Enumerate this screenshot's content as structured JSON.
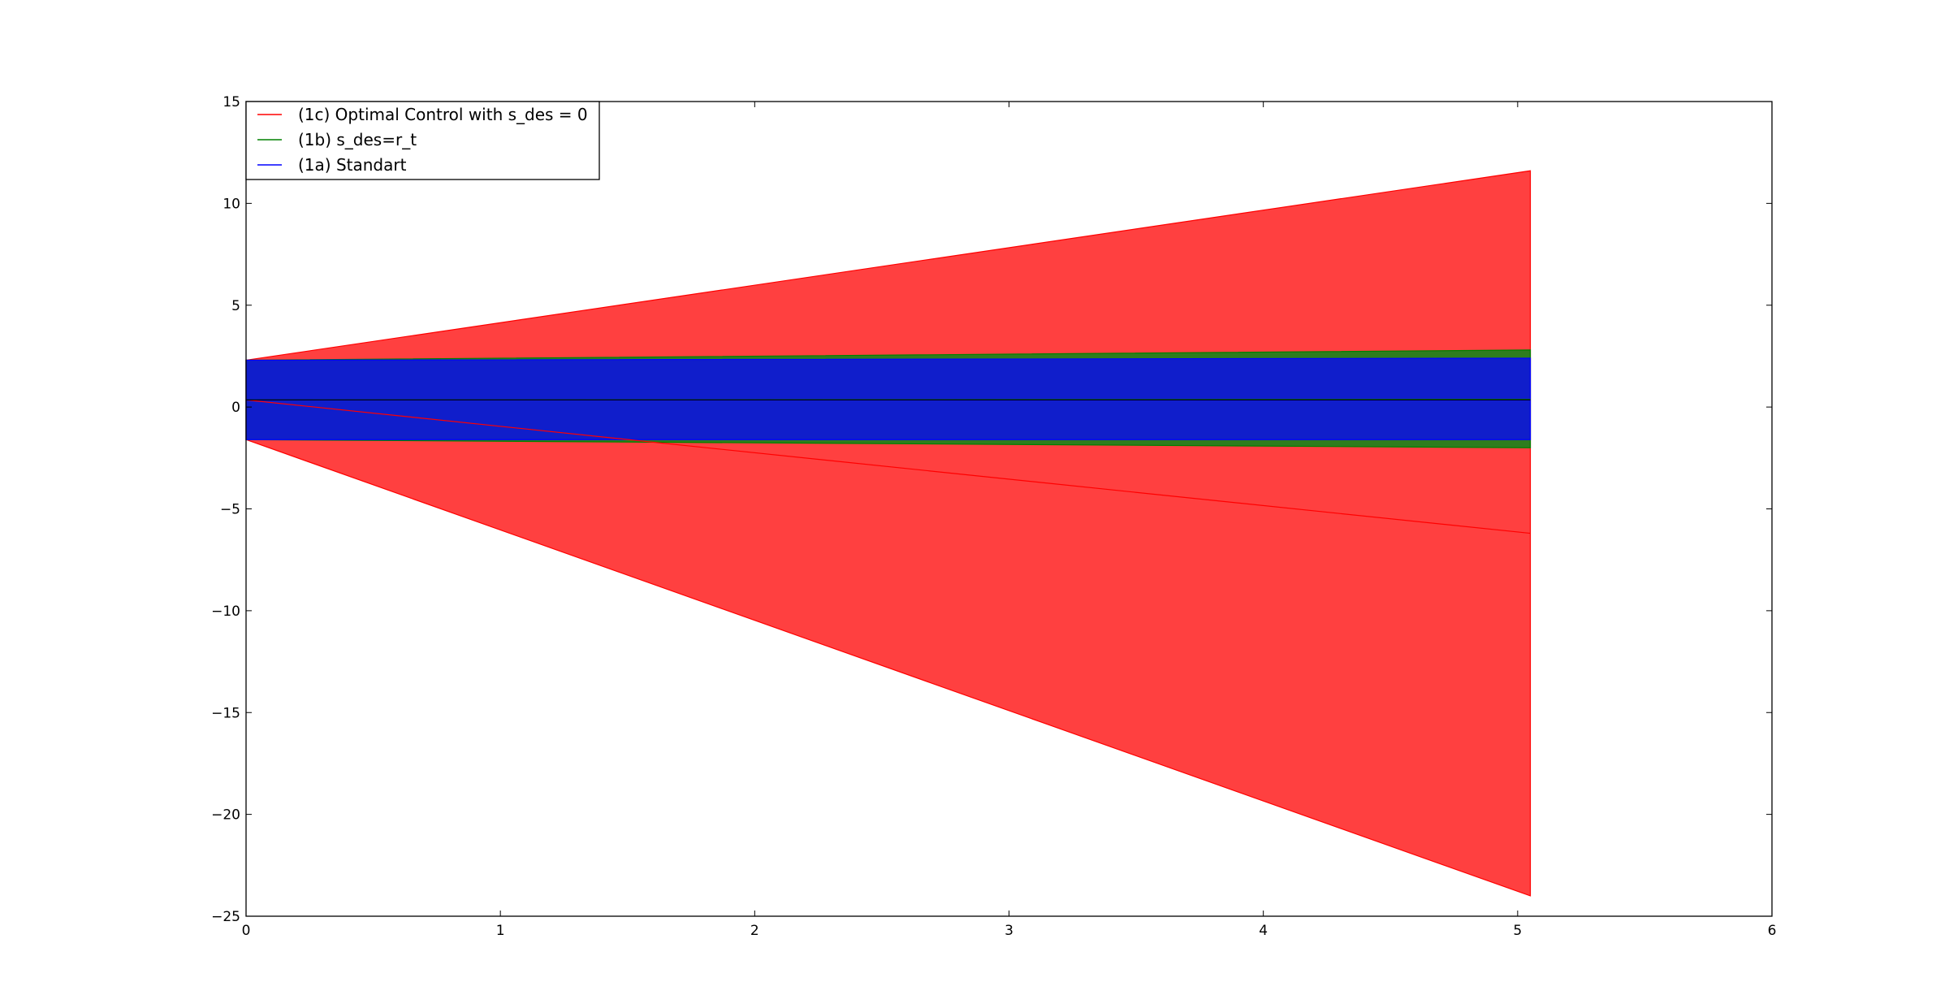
{
  "chart_data": {
    "type": "area",
    "title": "",
    "xlabel": "",
    "ylabel": "",
    "xlim": [
      0,
      6
    ],
    "ylim": [
      -25,
      15
    ],
    "x_ticks": [
      0,
      1,
      2,
      3,
      4,
      5,
      6
    ],
    "y_ticks": [
      15,
      10,
      5,
      0,
      -5,
      -10,
      -15,
      -20,
      -25
    ],
    "x_tick_labels": [
      "0",
      "1",
      "2",
      "3",
      "4",
      "5",
      "6"
    ],
    "y_tick_labels": [
      "15",
      "10",
      "5",
      "0",
      "−5",
      "−10",
      "−15",
      "−20",
      "−25"
    ],
    "grid": false,
    "legend_position": "top-left",
    "series": [
      {
        "name": "(1c) Optimal Control with s_des = 0",
        "color": "#ff0000",
        "fill_color": "#ff4040",
        "x": [
          0,
          5.05
        ],
        "mean": [
          0.35,
          -6.2
        ],
        "upper": [
          2.3,
          11.6
        ],
        "lower": [
          -1.6,
          -24.0
        ]
      },
      {
        "name": "(1b) s_des=r_t",
        "color": "#008000",
        "fill_color": "#2e7d1e",
        "x": [
          0,
          5.05
        ],
        "mean": [
          0.35,
          0.38
        ],
        "upper": [
          2.3,
          2.8
        ],
        "lower": [
          -1.6,
          -2.0
        ]
      },
      {
        "name": "(1a) Standart",
        "color": "#0000ff",
        "fill_color": "#101ecb",
        "x": [
          0,
          5.05
        ],
        "mean": [
          0.35,
          0.35
        ],
        "upper": [
          2.3,
          2.4
        ],
        "lower": [
          -1.6,
          -1.6
        ]
      }
    ]
  }
}
